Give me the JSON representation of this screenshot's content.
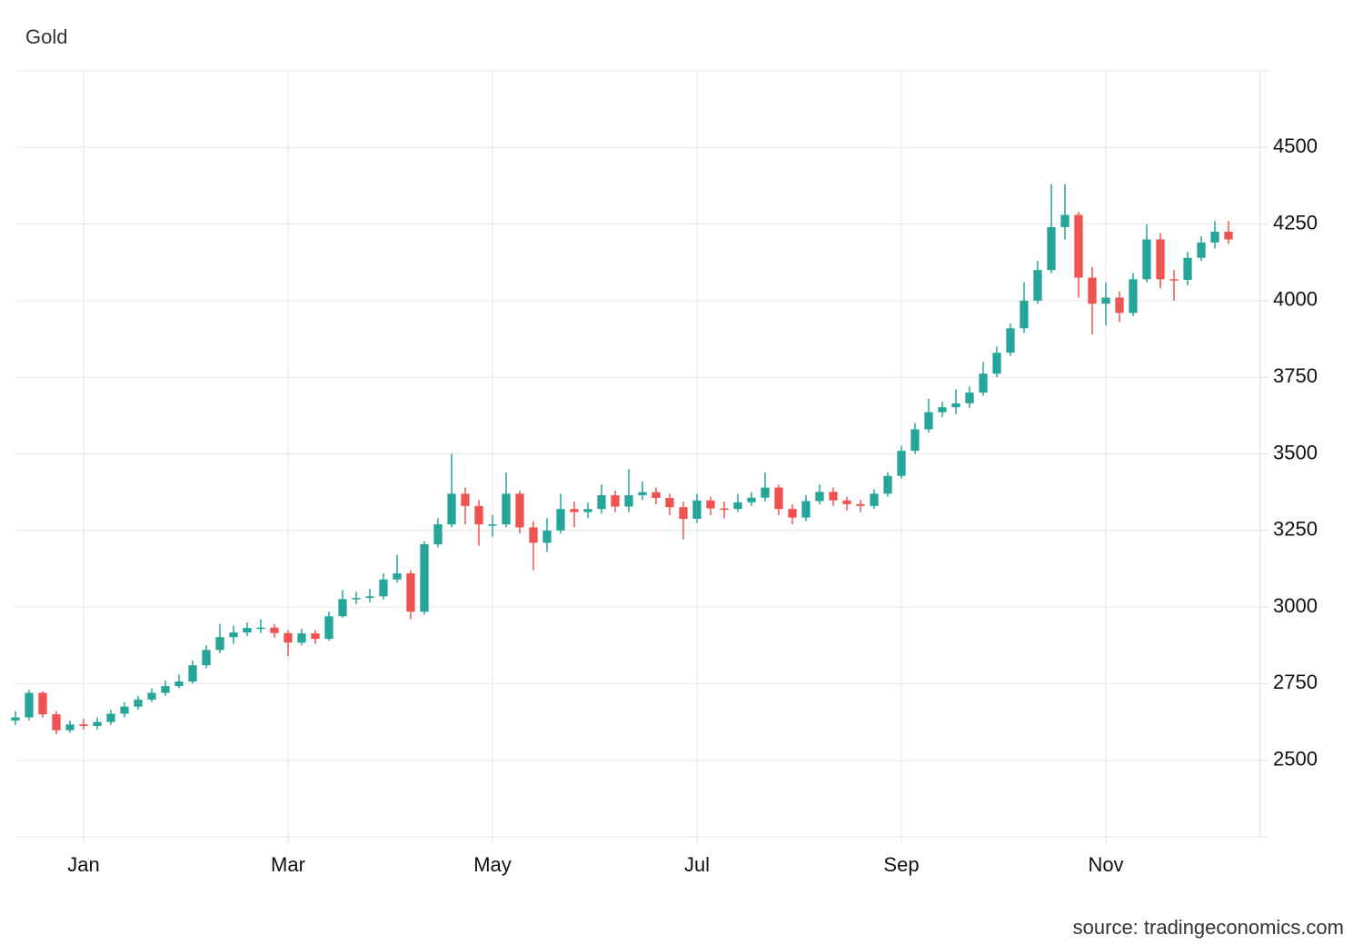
{
  "chart_data": {
    "type": "candlestick",
    "title": "Gold",
    "source": "source: tradingeconomics.com",
    "up_color": "#26a69a",
    "down_color": "#ef5350",
    "grid": true,
    "ylim": [
      2250,
      4750
    ],
    "yticks": [
      2500,
      2750,
      3000,
      3250,
      3500,
      3750,
      4000,
      4250,
      4500
    ],
    "categories": [
      null,
      null,
      null,
      null,
      null,
      "Jan",
      null,
      null,
      null,
      null,
      null,
      null,
      null,
      null,
      null,
      null,
      null,
      null,
      null,
      null,
      "Mar",
      null,
      null,
      null,
      null,
      null,
      null,
      null,
      null,
      null,
      null,
      null,
      null,
      null,
      null,
      "May",
      null,
      null,
      null,
      null,
      null,
      null,
      null,
      null,
      null,
      null,
      null,
      null,
      null,
      null,
      "Jul",
      null,
      null,
      null,
      null,
      null,
      null,
      null,
      null,
      null,
      null,
      null,
      null,
      null,
      null,
      "Sep",
      null,
      null,
      null,
      null,
      null,
      null,
      null,
      null,
      null,
      null,
      null,
      null,
      null,
      null,
      "Nov",
      null,
      null,
      null,
      null,
      null,
      null,
      null,
      null,
      null
    ],
    "open": [
      2630,
      2640,
      2720,
      2650,
      2598,
      2617,
      2612,
      2625,
      2652,
      2675,
      2698,
      2720,
      2742,
      2757,
      2810,
      2860,
      2902,
      2917,
      2932,
      2933,
      2915,
      2884,
      2914,
      2896,
      2970,
      3026,
      3030,
      3035,
      3090,
      3110,
      2985,
      3205,
      3270,
      3370,
      3330,
      3270,
      3270,
      3370,
      3260,
      3210,
      3250,
      3320,
      3310,
      3320,
      3365,
      3328,
      3365,
      3375,
      3356,
      3326,
      3288,
      3348,
      3322,
      3320,
      3342,
      3357,
      3390,
      3320,
      3292,
      3346,
      3376,
      3348,
      3336,
      3330,
      3370,
      3428,
      3510,
      3580,
      3636,
      3652,
      3665,
      3700,
      3762,
      3830,
      3910,
      4000,
      4100,
      4240,
      4280,
      4075,
      3990,
      4010,
      3960,
      4070,
      4200,
      4070,
      4068,
      4140,
      4190,
      4225
    ],
    "high": [
      2660,
      2730,
      2725,
      2660,
      2630,
      2635,
      2640,
      2665,
      2690,
      2710,
      2735,
      2760,
      2780,
      2825,
      2875,
      2945,
      2940,
      2950,
      2960,
      2945,
      2925,
      2930,
      2925,
      2985,
      3055,
      3050,
      3060,
      3110,
      3170,
      3120,
      3215,
      3290,
      3500,
      3390,
      3350,
      3300,
      3440,
      3380,
      3280,
      3290,
      3370,
      3345,
      3340,
      3400,
      3380,
      3450,
      3410,
      3390,
      3370,
      3345,
      3370,
      3360,
      3345,
      3370,
      3375,
      3440,
      3400,
      3335,
      3365,
      3400,
      3390,
      3360,
      3350,
      3385,
      3440,
      3525,
      3600,
      3680,
      3670,
      3710,
      3720,
      3800,
      3850,
      3925,
      4060,
      4130,
      4380,
      4380,
      4290,
      4110,
      4060,
      4030,
      4090,
      4250,
      4220,
      4100,
      4160,
      4210,
      4260,
      4260
    ],
    "low": [
      2615,
      2630,
      2640,
      2585,
      2590,
      2600,
      2600,
      2615,
      2640,
      2665,
      2690,
      2710,
      2735,
      2750,
      2800,
      2850,
      2880,
      2905,
      2915,
      2900,
      2840,
      2875,
      2880,
      2890,
      2965,
      3010,
      3015,
      3025,
      3080,
      2960,
      2975,
      3195,
      3260,
      3270,
      3200,
      3230,
      3260,
      3240,
      3120,
      3180,
      3240,
      3260,
      3290,
      3305,
      3310,
      3310,
      3350,
      3335,
      3300,
      3220,
      3275,
      3300,
      3290,
      3310,
      3330,
      3345,
      3300,
      3270,
      3280,
      3335,
      3330,
      3315,
      3310,
      3320,
      3360,
      3420,
      3500,
      3570,
      3620,
      3630,
      3650,
      3690,
      3750,
      3820,
      3895,
      3990,
      4090,
      4200,
      4010,
      3890,
      3920,
      3930,
      3950,
      4060,
      4040,
      4000,
      4050,
      4130,
      4170,
      4185
    ],
    "close": [
      2640,
      2720,
      2650,
      2598,
      2617,
      2612,
      2625,
      2652,
      2675,
      2698,
      2720,
      2742,
      2757,
      2810,
      2860,
      2902,
      2917,
      2932,
      2933,
      2915,
      2884,
      2914,
      2896,
      2970,
      3026,
      3030,
      3035,
      3090,
      3110,
      2985,
      3205,
      3270,
      3370,
      3330,
      3270,
      3270,
      3370,
      3260,
      3210,
      3250,
      3320,
      3310,
      3320,
      3365,
      3328,
      3365,
      3375,
      3356,
      3326,
      3288,
      3348,
      3322,
      3320,
      3342,
      3357,
      3390,
      3320,
      3292,
      3346,
      3376,
      3348,
      3336,
      3330,
      3370,
      3428,
      3510,
      3580,
      3636,
      3652,
      3665,
      3700,
      3762,
      3830,
      3910,
      4000,
      4100,
      4240,
      4280,
      4075,
      3990,
      4010,
      3960,
      4070,
      4200,
      4070,
      4068,
      4140,
      4190,
      4225,
      4200
    ]
  }
}
